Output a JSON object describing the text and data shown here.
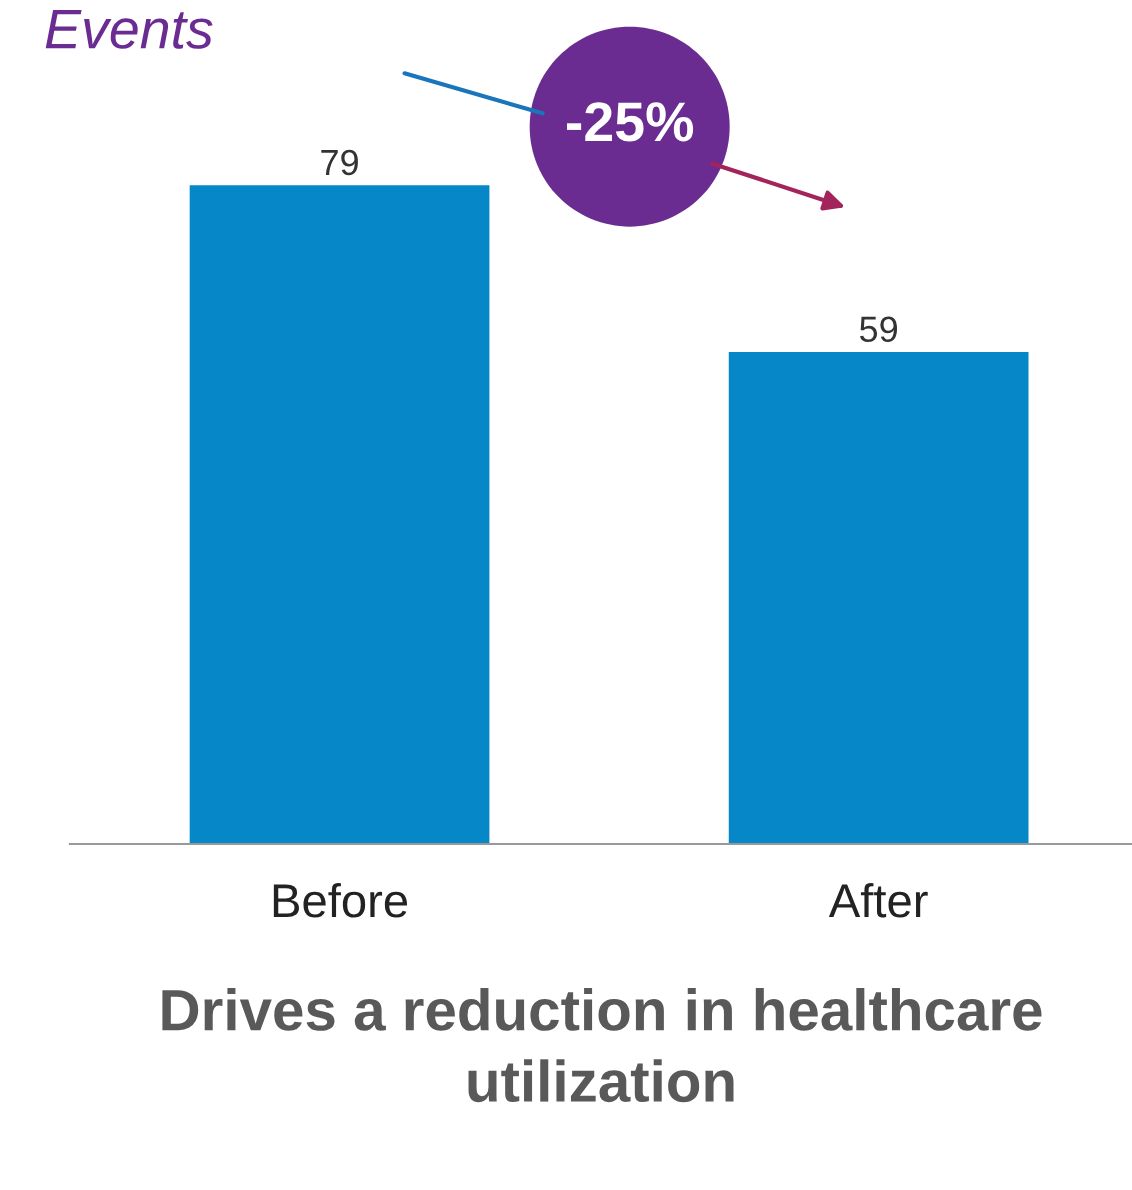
{
  "chart_data": {
    "type": "bar",
    "title": "Events",
    "xlabel": "Drives a reduction in healthcare utilization",
    "categories": [
      "Before",
      "After"
    ],
    "values": [
      79,
      59
    ],
    "color": "#0688c8",
    "data_labels": true,
    "grid": false,
    "legend": false,
    "annotations": [
      "-25%"
    ]
  }
}
